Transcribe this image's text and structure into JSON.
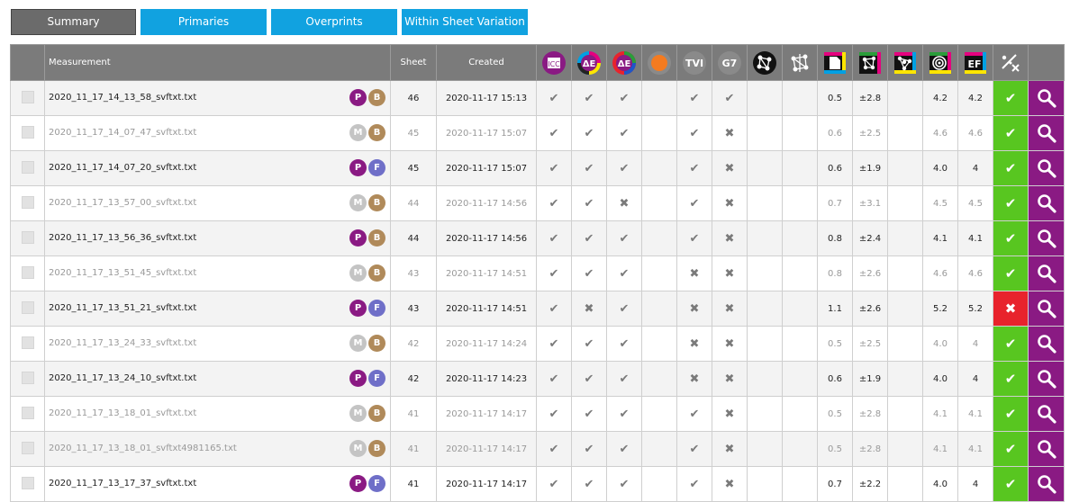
{
  "tabs": [
    {
      "label": "Summary",
      "active": true
    },
    {
      "label": "Primaries",
      "active": false
    },
    {
      "label": "Overprints",
      "active": false
    },
    {
      "label": "Within Sheet Variation",
      "active": false
    }
  ],
  "header": {
    "measurement": "Measurement",
    "sheet": "Sheet",
    "created": "Created",
    "icon_icc": "ICC",
    "icon_de1": "ΔE",
    "icon_de2": "ΔE",
    "icon_tvi": "TVI",
    "icon_g7": "G7",
    "icon_ef": "EF"
  },
  "rows": [
    {
      "dim": false,
      "name": "2020_11_17_14_13_58_svftxt.txt",
      "b1": "P",
      "b2": "B",
      "sheet": "46",
      "created": "2020-11-17 15:13",
      "c1": "✔",
      "c2": "✔",
      "c3": "✔",
      "c4": "",
      "c5": "✔",
      "c6": "✔",
      "c7": "",
      "c8": "",
      "v1": "0.5",
      "v2": "±2.8",
      "v3": "",
      "v4": "4.2",
      "v5": "4.2",
      "status": "✔",
      "ok": true
    },
    {
      "dim": true,
      "name": "2020_11_17_14_07_47_svftxt.txt",
      "b1": "M",
      "b2": "B",
      "sheet": "45",
      "created": "2020-11-17 15:07",
      "c1": "✔",
      "c2": "✔",
      "c3": "✔",
      "c4": "",
      "c5": "✔",
      "c6": "✖",
      "c7": "",
      "c8": "",
      "v1": "0.6",
      "v2": "±2.5",
      "v3": "",
      "v4": "4.6",
      "v5": "4.6",
      "status": "✔",
      "ok": true
    },
    {
      "dim": false,
      "name": "2020_11_17_14_07_20_svftxt.txt",
      "b1": "P",
      "b2": "F",
      "sheet": "45",
      "created": "2020-11-17 15:07",
      "c1": "✔",
      "c2": "✔",
      "c3": "✔",
      "c4": "",
      "c5": "✔",
      "c6": "✖",
      "c7": "",
      "c8": "",
      "v1": "0.6",
      "v2": "±1.9",
      "v3": "",
      "v4": "4.0",
      "v5": "4",
      "status": "✔",
      "ok": true
    },
    {
      "dim": true,
      "name": "2020_11_17_13_57_00_svftxt.txt",
      "b1": "M",
      "b2": "B",
      "sheet": "44",
      "created": "2020-11-17 14:56",
      "c1": "✔",
      "c2": "✔",
      "c3": "✖",
      "c4": "",
      "c5": "✔",
      "c6": "✖",
      "c7": "",
      "c8": "",
      "v1": "0.7",
      "v2": "±3.1",
      "v3": "",
      "v4": "4.5",
      "v5": "4.5",
      "status": "✔",
      "ok": true
    },
    {
      "dim": false,
      "name": "2020_11_17_13_56_36_svftxt.txt",
      "b1": "P",
      "b2": "B",
      "sheet": "44",
      "created": "2020-11-17 14:56",
      "c1": "✔",
      "c2": "✔",
      "c3": "✔",
      "c4": "",
      "c5": "✔",
      "c6": "✖",
      "c7": "",
      "c8": "",
      "v1": "0.8",
      "v2": "±2.4",
      "v3": "",
      "v4": "4.1",
      "v5": "4.1",
      "status": "✔",
      "ok": true
    },
    {
      "dim": true,
      "name": "2020_11_17_13_51_45_svftxt.txt",
      "b1": "M",
      "b2": "B",
      "sheet": "43",
      "created": "2020-11-17 14:51",
      "c1": "✔",
      "c2": "✔",
      "c3": "✔",
      "c4": "",
      "c5": "✖",
      "c6": "✖",
      "c7": "",
      "c8": "",
      "v1": "0.8",
      "v2": "±2.6",
      "v3": "",
      "v4": "4.6",
      "v5": "4.6",
      "status": "✔",
      "ok": true
    },
    {
      "dim": false,
      "name": "2020_11_17_13_51_21_svftxt.txt",
      "b1": "P",
      "b2": "F",
      "sheet": "43",
      "created": "2020-11-17 14:51",
      "c1": "✔",
      "c2": "✖",
      "c3": "✔",
      "c4": "",
      "c5": "✖",
      "c6": "✖",
      "c7": "",
      "c8": "",
      "v1": "1.1",
      "v2": "±2.6",
      "v3": "",
      "v4": "5.2",
      "v5": "5.2",
      "status": "✖",
      "ok": false
    },
    {
      "dim": true,
      "name": "2020_11_17_13_24_33_svftxt.txt",
      "b1": "M",
      "b2": "B",
      "sheet": "42",
      "created": "2020-11-17 14:24",
      "c1": "✔",
      "c2": "✔",
      "c3": "✔",
      "c4": "",
      "c5": "✖",
      "c6": "✖",
      "c7": "",
      "c8": "",
      "v1": "0.5",
      "v2": "±2.5",
      "v3": "",
      "v4": "4.0",
      "v5": "4",
      "status": "✔",
      "ok": true
    },
    {
      "dim": false,
      "name": "2020_11_17_13_24_10_svftxt.txt",
      "b1": "P",
      "b2": "F",
      "sheet": "42",
      "created": "2020-11-17 14:23",
      "c1": "✔",
      "c2": "✔",
      "c3": "✔",
      "c4": "",
      "c5": "✖",
      "c6": "✖",
      "c7": "",
      "c8": "",
      "v1": "0.6",
      "v2": "±1.9",
      "v3": "",
      "v4": "4.0",
      "v5": "4",
      "status": "✔",
      "ok": true
    },
    {
      "dim": true,
      "name": "2020_11_17_13_18_01_svftxt.txt",
      "b1": "M",
      "b2": "B",
      "sheet": "41",
      "created": "2020-11-17 14:17",
      "c1": "✔",
      "c2": "✔",
      "c3": "✔",
      "c4": "",
      "c5": "✔",
      "c6": "✖",
      "c7": "",
      "c8": "",
      "v1": "0.5",
      "v2": "±2.8",
      "v3": "",
      "v4": "4.1",
      "v5": "4.1",
      "status": "✔",
      "ok": true
    },
    {
      "dim": true,
      "name": "2020_11_17_13_18_01_svftxt4981165.txt",
      "b1": "M",
      "b2": "B",
      "sheet": "41",
      "created": "2020-11-17 14:17",
      "c1": "✔",
      "c2": "✔",
      "c3": "✔",
      "c4": "",
      "c5": "✔",
      "c6": "✖",
      "c7": "",
      "c8": "",
      "v1": "0.5",
      "v2": "±2.8",
      "v3": "",
      "v4": "4.1",
      "v5": "4.1",
      "status": "✔",
      "ok": true
    },
    {
      "dim": false,
      "name": "2020_11_17_13_17_37_svftxt.txt",
      "b1": "P",
      "b2": "F",
      "sheet": "41",
      "created": "2020-11-17 14:17",
      "c1": "✔",
      "c2": "✔",
      "c3": "✔",
      "c4": "",
      "c5": "✔",
      "c6": "✖",
      "c7": "",
      "c8": "",
      "v1": "0.7",
      "v2": "±2.2",
      "v3": "",
      "v4": "4.0",
      "v5": "4",
      "status": "✔",
      "ok": true
    }
  ],
  "colors": {
    "tab_active": "#6b6b6b",
    "tab_blue": "#11a2e0",
    "header_bg": "#7b7b7b",
    "status_ok": "#58c620",
    "status_bad": "#e8232c",
    "view_bg": "#8a1a83",
    "badge_P": "#8a1a83",
    "badge_M": "#c4c4c4",
    "badge_B": "#b08a5a",
    "badge_F": "#6f6fc8"
  },
  "icons": {
    "view": "magnifier-icon",
    "header_last": "percent-cross-icon"
  }
}
